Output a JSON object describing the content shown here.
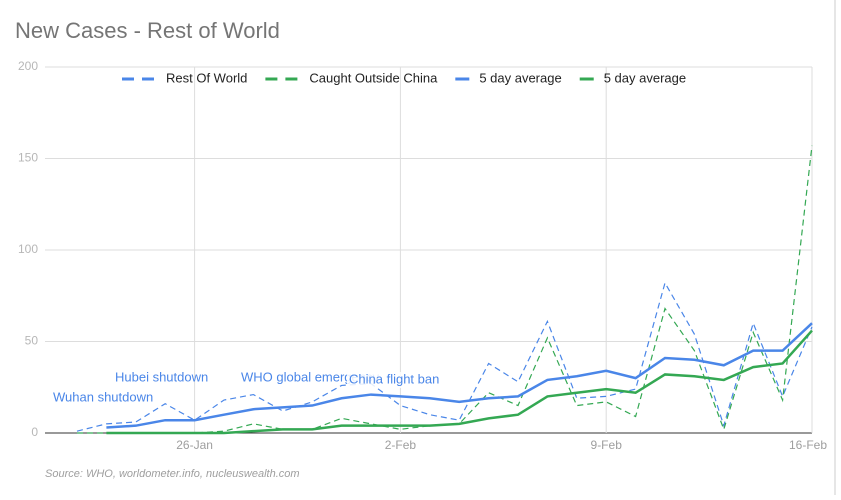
{
  "chart_data": {
    "type": "line",
    "title": "New Cases - Rest of World",
    "source": "Source: WHO, worldometer.info, nucleuswealth.com",
    "categories": [
      null,
      null,
      null,
      null,
      "26-Jan",
      null,
      null,
      null,
      null,
      null,
      null,
      "2-Feb",
      null,
      null,
      null,
      null,
      null,
      null,
      "9-Feb",
      null,
      null,
      null,
      null,
      null,
      null,
      "16-Feb"
    ],
    "ylim": [
      0,
      200
    ],
    "yticks": [
      0,
      50,
      100,
      150,
      200
    ],
    "grid": true,
    "legend": "top",
    "series": [
      {
        "name": "Rest Of World",
        "color": "#4a86e8",
        "dash": true,
        "values": [
          1,
          5,
          6,
          16,
          7,
          18,
          21,
          12,
          17,
          26,
          27,
          15,
          10,
          7,
          38,
          28,
          61,
          19,
          20,
          24,
          82,
          54,
          4,
          60,
          20,
          58
        ]
      },
      {
        "name": "Caught Outside China",
        "color": "#34a853",
        "dash": true,
        "values": [
          0,
          0,
          0,
          0,
          0,
          1,
          5,
          2,
          2,
          8,
          5,
          2,
          4,
          5,
          22,
          15,
          52,
          15,
          17,
          9,
          68,
          45,
          2,
          55,
          18,
          157
        ]
      },
      {
        "name": "5 day average",
        "color": "#4a86e8",
        "dash": false,
        "values": [
          null,
          3,
          4,
          7,
          7,
          10,
          13,
          14,
          15,
          19,
          21,
          20,
          19,
          17,
          19,
          20,
          29,
          31,
          34,
          30,
          41,
          40,
          37,
          45,
          45,
          60
        ]
      },
      {
        "name": "5 day average",
        "color": "#34a853",
        "dash": false,
        "values": [
          null,
          0,
          0,
          0,
          0,
          0,
          1,
          2,
          2,
          4,
          4,
          4,
          4,
          5,
          8,
          10,
          20,
          22,
          24,
          22,
          32,
          31,
          29,
          36,
          38,
          56
        ]
      }
    ],
    "annotations": [
      "Wuhan shutdown",
      "Hubei shutdown",
      "WHO global emergency",
      "China flight ban"
    ]
  }
}
